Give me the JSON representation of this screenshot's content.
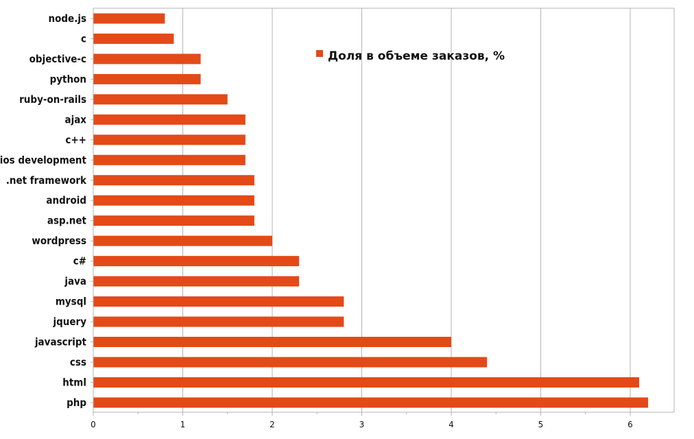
{
  "chart_data": {
    "type": "bar",
    "orientation": "horizontal",
    "categories": [
      "node.js",
      "c",
      "objective-c",
      "python",
      "ruby-on-rails",
      "ajax",
      "c++",
      "ios development",
      ".net framework",
      "android",
      "asp.net",
      "wordpress",
      "c#",
      "java",
      "mysql",
      "jquery",
      "javascript",
      "css",
      "html",
      "php"
    ],
    "series": [
      {
        "name": "Доля в объеме заказов, %",
        "values": [
          0.8,
          0.9,
          1.2,
          1.2,
          1.5,
          1.7,
          1.7,
          1.7,
          1.8,
          1.8,
          1.8,
          2.0,
          2.3,
          2.3,
          2.8,
          2.8,
          4.0,
          4.4,
          6.1,
          6.2
        ],
        "color": "#e34a17"
      }
    ],
    "xlim": [
      0,
      6.5
    ],
    "xticks": [
      "0",
      "1",
      "2",
      "3",
      "4",
      "5",
      "6"
    ],
    "grid": "vertical",
    "legend_position": "top-right",
    "title": "",
    "xlabel": "",
    "ylabel": ""
  },
  "colors": {
    "bar": "#e34a17",
    "grid": "#b3b3b3",
    "axis": "#b3b3b3",
    "background": "#ffffff"
  }
}
